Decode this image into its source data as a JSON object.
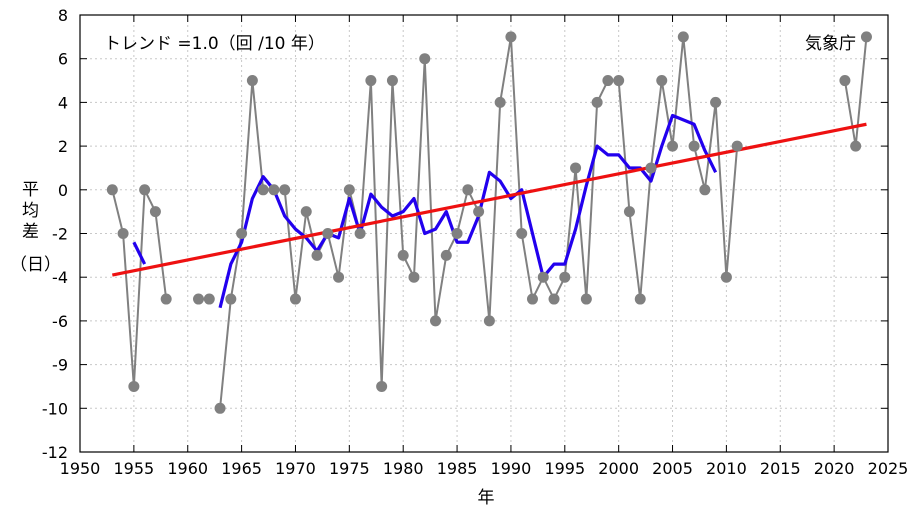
{
  "chart_data": {
    "type": "line",
    "title": "",
    "xlabel": "年",
    "ylabel": "平均差（日）",
    "x_range": [
      1950,
      2025
    ],
    "x_ticks": [
      1950,
      1955,
      1960,
      1965,
      1970,
      1975,
      1980,
      1985,
      1990,
      1995,
      2000,
      2005,
      2010,
      2015,
      2020,
      2025
    ],
    "y_ticks": [
      8,
      6,
      4,
      2,
      0,
      -2,
      -4,
      -6,
      -9,
      -10,
      -12
    ],
    "grid": true,
    "annotation": "トレンド =1.0（回 /10 年）",
    "source_label": "気象庁",
    "series": [
      {
        "kind": "annual",
        "color": "#808080",
        "segments": [
          [
            [
              1953,
              0
            ],
            [
              1954,
              -2
            ],
            [
              1955,
              -9.5
            ],
            [
              1956,
              0
            ],
            [
              1957,
              -1
            ],
            [
              1958,
              -5
            ]
          ],
          [
            [
              1961,
              -5
            ],
            [
              1962,
              -5
            ]
          ],
          [
            [
              1963,
              -10
            ],
            [
              1964,
              -5
            ],
            [
              1965,
              -2
            ],
            [
              1966,
              5
            ],
            [
              1967,
              0
            ],
            [
              1968,
              0
            ],
            [
              1969,
              0
            ],
            [
              1970,
              -5
            ],
            [
              1971,
              -1
            ],
            [
              1972,
              -3
            ],
            [
              1973,
              -2
            ],
            [
              1974,
              -4
            ],
            [
              1975,
              0
            ],
            [
              1976,
              -2
            ],
            [
              1977,
              5
            ],
            [
              1978,
              -9.5
            ],
            [
              1979,
              5
            ],
            [
              1980,
              -3
            ],
            [
              1981,
              -4
            ],
            [
              1982,
              6
            ],
            [
              1983,
              -6
            ],
            [
              1984,
              -3
            ],
            [
              1985,
              -2
            ],
            [
              1986,
              0
            ],
            [
              1987,
              -1
            ],
            [
              1988,
              -6
            ],
            [
              1989,
              4
            ],
            [
              1990,
              7
            ],
            [
              1991,
              -2
            ],
            [
              1992,
              -5
            ],
            [
              1993,
              -4
            ],
            [
              1994,
              -5
            ],
            [
              1995,
              -4
            ],
            [
              1996,
              1
            ],
            [
              1997,
              -5
            ],
            [
              1998,
              4
            ],
            [
              1999,
              5
            ],
            [
              2000,
              5
            ],
            [
              2001,
              -1
            ],
            [
              2002,
              -5
            ],
            [
              2003,
              1
            ],
            [
              2004,
              5
            ],
            [
              2005,
              2
            ],
            [
              2006,
              7
            ],
            [
              2007,
              2
            ],
            [
              2008,
              0
            ],
            [
              2009,
              4
            ],
            [
              2010,
              -4
            ],
            [
              2011,
              2
            ]
          ],
          [
            [
              2021,
              5
            ],
            [
              2022,
              2
            ],
            [
              2023,
              7
            ]
          ]
        ]
      },
      {
        "kind": "5-year running mean",
        "color": "#2200ee",
        "segments": [
          [
            [
              1955,
              -2.4
            ],
            [
              1956,
              -3.4
            ]
          ],
          [
            [
              1963,
              -5.4
            ],
            [
              1964,
              -3.4
            ],
            [
              1965,
              -2.4
            ],
            [
              1966,
              -0.4
            ],
            [
              1967,
              0.6
            ],
            [
              1968,
              0
            ],
            [
              1969,
              -1.2
            ],
            [
              1970,
              -1.8
            ],
            [
              1971,
              -2.2
            ],
            [
              1972,
              -2.8
            ],
            [
              1973,
              -2
            ],
            [
              1974,
              -2.2
            ],
            [
              1975,
              -0.4
            ],
            [
              1976,
              -2
            ],
            [
              1977,
              -0.2
            ],
            [
              1978,
              -0.8
            ],
            [
              1979,
              -1.2
            ],
            [
              1980,
              -1
            ],
            [
              1981,
              -0.4
            ],
            [
              1982,
              -2
            ],
            [
              1983,
              -1.8
            ],
            [
              1984,
              -1
            ],
            [
              1985,
              -2.4
            ],
            [
              1986,
              -2.4
            ],
            [
              1987,
              -1.2
            ],
            [
              1988,
              0.8
            ],
            [
              1989,
              0.4
            ],
            [
              1990,
              -0.4
            ],
            [
              1991,
              0
            ],
            [
              1992,
              -2
            ],
            [
              1993,
              -4
            ],
            [
              1994,
              -3.4
            ],
            [
              1995,
              -3.4
            ],
            [
              1996,
              -1.8
            ],
            [
              1997,
              0.2
            ],
            [
              1998,
              2
            ],
            [
              1999,
              1.6
            ],
            [
              2000,
              1.6
            ],
            [
              2001,
              1
            ],
            [
              2002,
              1
            ],
            [
              2003,
              0.4
            ],
            [
              2004,
              2
            ],
            [
              2005,
              3.4
            ],
            [
              2006,
              3.2
            ],
            [
              2007,
              3
            ],
            [
              2008,
              1.8
            ],
            [
              2009,
              0.8
            ]
          ]
        ]
      },
      {
        "kind": "trend",
        "color": "#ee1111",
        "segments": [
          [
            [
              1953,
              -3.9
            ],
            [
              2023,
              3
            ]
          ]
        ]
      }
    ]
  }
}
